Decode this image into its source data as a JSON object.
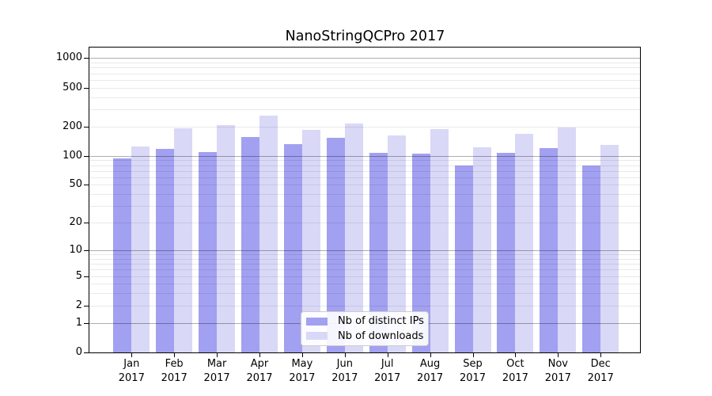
{
  "title": "NanoStringQCPro 2017",
  "chart_data": {
    "type": "bar",
    "title": "NanoStringQCPro 2017",
    "categories": [
      "Jan 2017",
      "Feb 2017",
      "Mar 2017",
      "Apr 2017",
      "May 2017",
      "Jun 2017",
      "Jul 2017",
      "Aug 2017",
      "Sep 2017",
      "Oct 2017",
      "Nov 2017",
      "Dec 2017"
    ],
    "series": [
      {
        "name": "Nb of distinct IPs",
        "color": "#a2a0f0",
        "values": [
          94,
          118,
          109,
          155,
          131,
          152,
          108,
          106,
          80,
          107,
          120,
          79
        ]
      },
      {
        "name": "Nb of downloads",
        "color": "#d9d8f7",
        "values": [
          125,
          191,
          207,
          260,
          183,
          215,
          163,
          189,
          123,
          168,
          197,
          129
        ]
      }
    ],
    "xlabel": "",
    "ylabel": "",
    "y_scale": "log1p",
    "y_ticks": [
      0,
      1,
      2,
      5,
      10,
      20,
      50,
      100,
      200,
      500,
      1000
    ],
    "y_major_gridlines": [
      1,
      10,
      100,
      1000
    ],
    "y_minor_gridlines": [
      3,
      4,
      6,
      7,
      8,
      9,
      30,
      40,
      60,
      70,
      80,
      90,
      300,
      400,
      600,
      700,
      800,
      900
    ],
    "ylim": [
      0,
      1282
    ],
    "grid": "on",
    "legend_position": "bottom-center"
  },
  "colors": {
    "bar_distinct_ips": "#a2a0f0",
    "bar_downloads": "#d9d8f7",
    "grid_major": "#b3b3b3",
    "grid_minor": "#e9e9e9",
    "frame": "#000000",
    "background": "#ffffff"
  }
}
